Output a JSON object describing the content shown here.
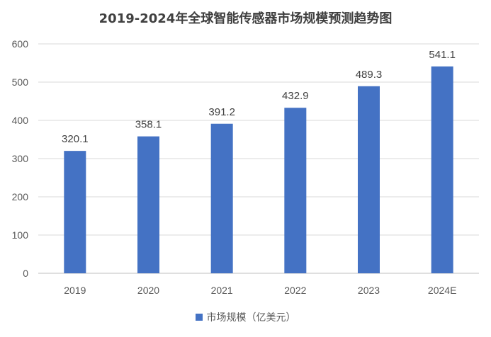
{
  "chart_data": {
    "type": "bar",
    "title": "2019-2024年全球智能传感器市场规模预测趋势图",
    "categories": [
      "2019",
      "2020",
      "2021",
      "2022",
      "2023",
      "2024E"
    ],
    "series": [
      {
        "name": "市场规模（亿美元）",
        "values": [
          320.1,
          358.1,
          391.2,
          432.9,
          489.3,
          541.1
        ]
      }
    ],
    "data_labels": [
      "320.1",
      "358.1",
      "391.2",
      "432.9",
      "489.3",
      "541.1"
    ],
    "y_ticks": [
      0,
      100,
      200,
      300,
      400,
      500,
      600
    ],
    "ylim": [
      0,
      600
    ],
    "xlabel": "",
    "ylabel": "",
    "grid": true,
    "legend_position": "bottom",
    "bar_color": "#4472C4",
    "grid_color": "#d9d9d9"
  }
}
